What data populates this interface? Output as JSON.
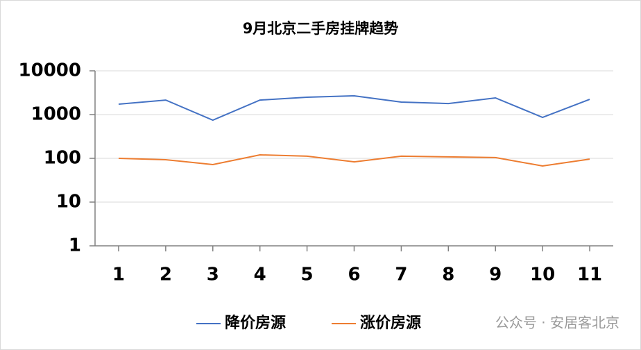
{
  "chart_data": {
    "type": "line",
    "title": "9月北京二手房挂牌趋势",
    "categories": [
      "1",
      "2",
      "3",
      "4",
      "5",
      "6",
      "7",
      "8",
      "9",
      "10",
      "11"
    ],
    "series": [
      {
        "name": "降价房源",
        "color": "#4472c4",
        "values": [
          1730,
          2150,
          746,
          2150,
          2490,
          2680,
          1930,
          1790,
          2400,
          864,
          2230
        ]
      },
      {
        "name": "涨价房源",
        "color": "#ed7d31",
        "values": [
          100,
          93,
          72,
          120,
          112,
          83,
          112,
          108,
          104,
          67,
          96
        ]
      }
    ],
    "ylim": [
      1,
      10000
    ],
    "yticks": [
      1,
      10,
      100,
      1000,
      10000
    ],
    "log_scale": true,
    "grid": true,
    "legend": "bottom",
    "watermark": "公众号 · 安居客北京"
  }
}
